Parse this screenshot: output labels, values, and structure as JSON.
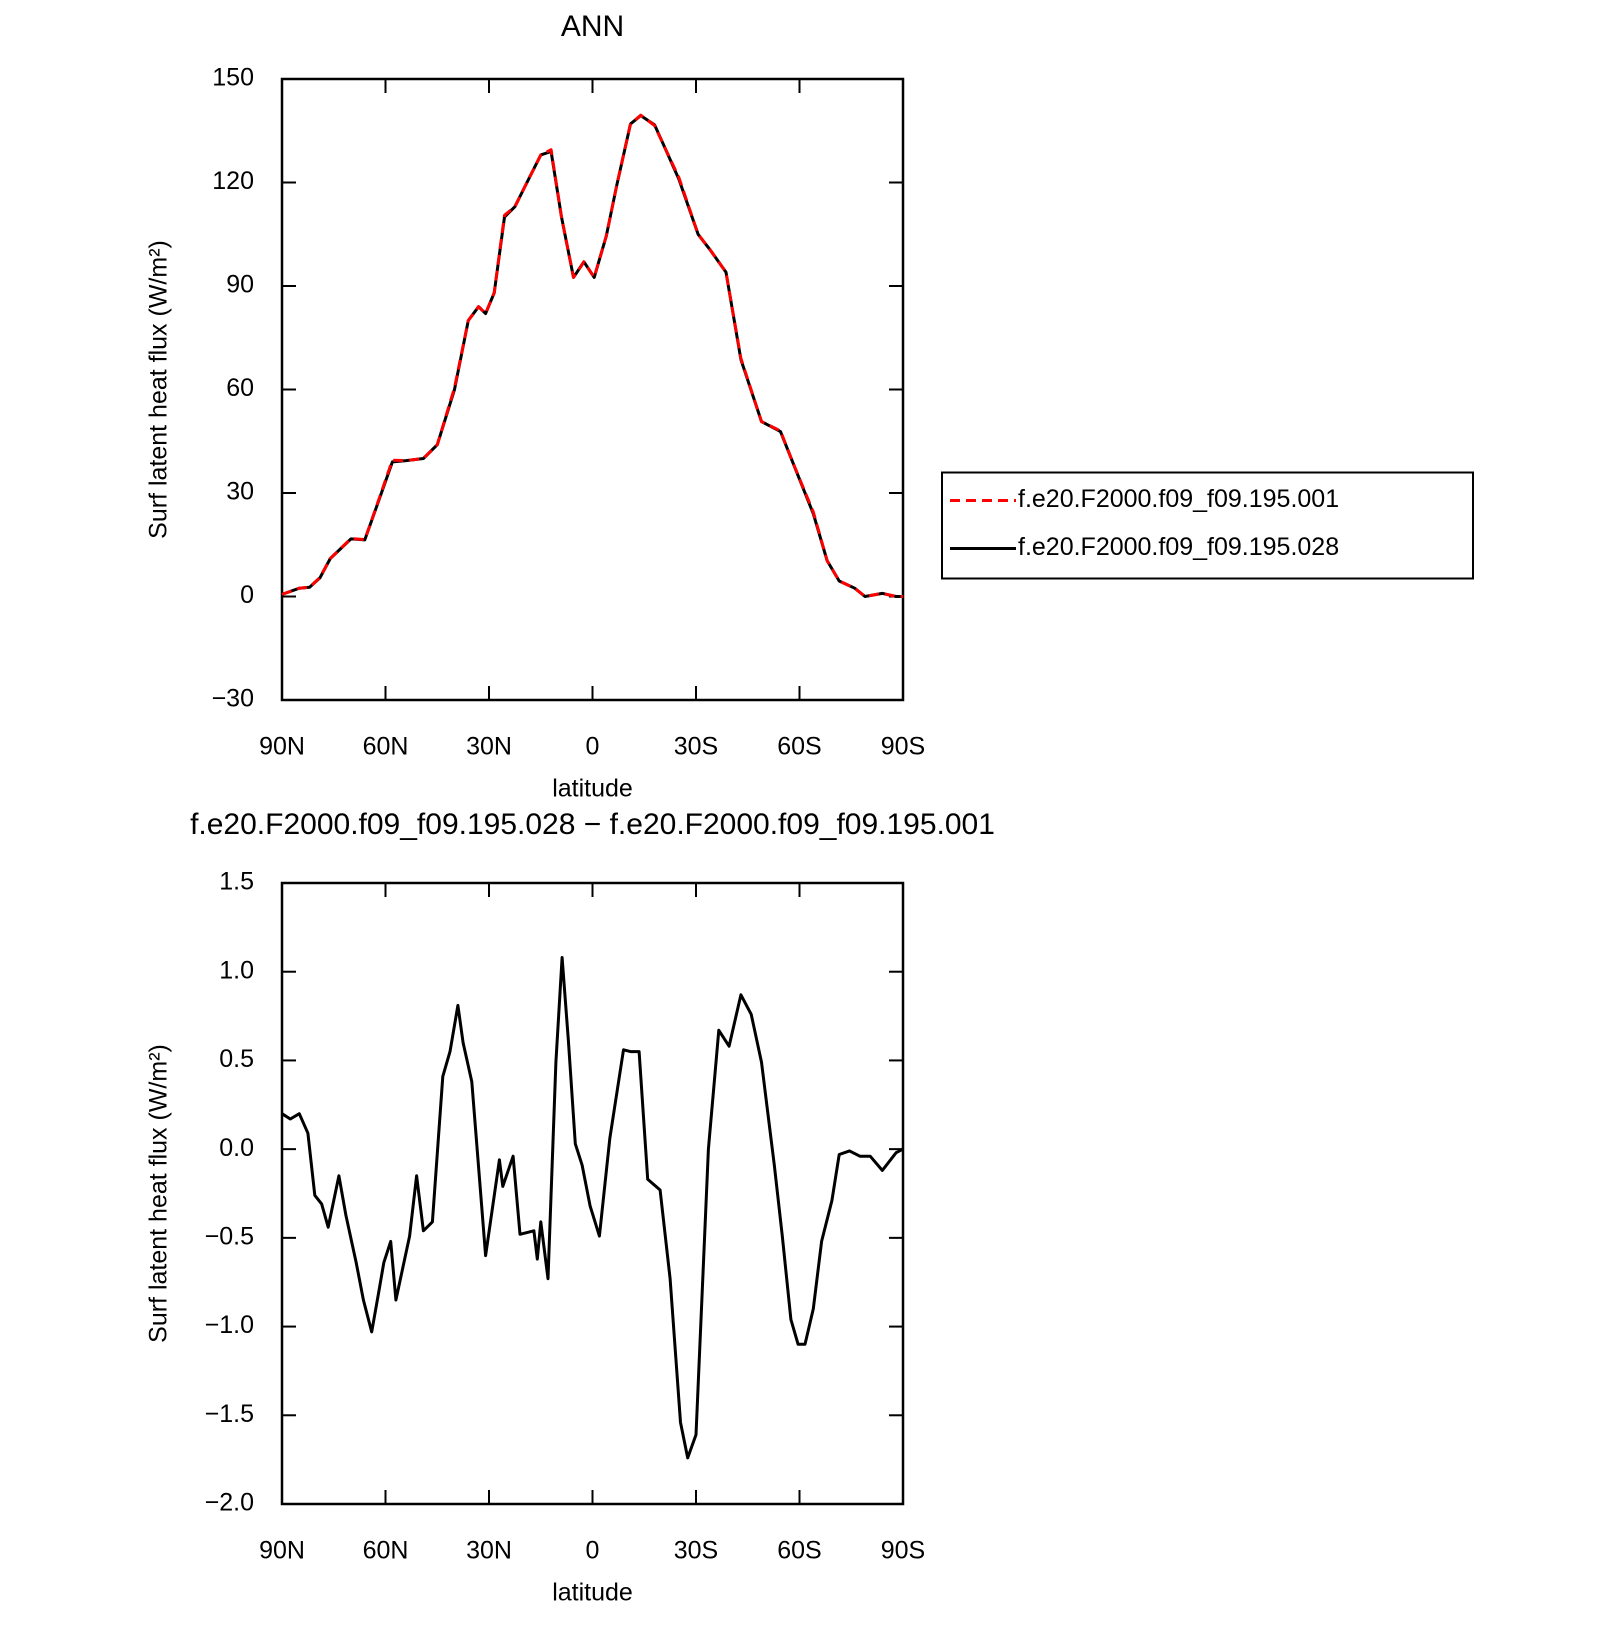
{
  "chart_data": [
    {
      "type": "line",
      "title": "ANN",
      "xlabel": "latitude",
      "ylabel": "Surf latent heat flux (W/m²)",
      "x": [
        90,
        85,
        82,
        79,
        76,
        70,
        66,
        63,
        58,
        54,
        49,
        45,
        40,
        36,
        33,
        31,
        28.5,
        25.5,
        22.5,
        19.5,
        15,
        12,
        9,
        5.5,
        2.5,
        -0.5,
        -4,
        -7,
        -11,
        -14,
        -18,
        -21,
        -25,
        -30.6,
        -34,
        -38.7,
        -43,
        -49,
        -54.5,
        -58,
        -64,
        -68,
        -71.5,
        -76,
        -79,
        -84,
        -88,
        -90
      ],
      "series": [
        {
          "name": "f.e20.F2000.f09_f09.195.001",
          "color": "#ff0000",
          "linestyle": "dashed",
          "values": [
            0.6,
            2.4,
            2.7,
            5.5,
            11,
            16.8,
            16.5,
            25,
            39.5,
            39.4,
            40,
            44,
            60.5,
            80,
            84,
            82,
            88,
            110.5,
            113,
            119,
            128,
            129.5,
            110,
            92.5,
            97,
            92.5,
            104.5,
            119,
            137,
            139.5,
            136.5,
            130,
            121.5,
            105,
            100.6,
            94,
            69,
            50.7,
            48,
            39,
            24.5,
            10.4,
            4.5,
            2.4,
            0,
            0.9,
            0,
            0
          ]
        },
        {
          "name": "f.e20.F2000.f09_f09.195.028",
          "color": "#000000",
          "linestyle": "solid",
          "values": [
            0.6,
            2.4,
            2.7,
            5.4,
            11,
            16.7,
            16.4,
            24.8,
            39,
            39.4,
            40,
            44,
            60,
            80,
            84,
            82,
            88,
            110,
            113,
            119,
            128,
            129,
            110,
            92.5,
            97,
            92.5,
            104.5,
            119,
            137,
            139.4,
            136.7,
            130,
            121,
            105,
            100.6,
            94,
            68.7,
            50.7,
            47.8,
            39,
            24,
            10.4,
            4.5,
            2.4,
            0,
            0.9,
            0,
            0
          ]
        }
      ],
      "xlim": [
        90,
        -90
      ],
      "xticks": [
        {
          "value": 90,
          "label": "90N"
        },
        {
          "value": 60,
          "label": "60N"
        },
        {
          "value": 30,
          "label": "30N"
        },
        0,
        {
          "value": -30,
          "label": "30S"
        },
        {
          "value": -60,
          "label": "60S"
        },
        {
          "value": -90,
          "label": "90S"
        }
      ],
      "ylim": [
        -30,
        150
      ],
      "yticks": [
        {
          "value": -30,
          "label": "−30"
        },
        0,
        30,
        60,
        90,
        120,
        150
      ],
      "legend": "right"
    },
    {
      "type": "line",
      "title": "f.e20.F2000.f09_f09.195.028 − f.e20.F2000.f09_f09.195.001",
      "xlabel": "latitude",
      "ylabel": "Surf latent heat flux (W/m²)",
      "x": [
        90,
        87.6,
        85,
        82.5,
        80.5,
        78.5,
        76.6,
        73.5,
        71.5,
        68.5,
        66.4,
        64,
        62,
        60.5,
        58.5,
        57,
        53,
        51,
        49,
        46.4,
        43.4,
        41.3,
        39,
        37.5,
        35,
        31,
        27,
        26,
        23,
        21,
        17,
        16,
        15,
        12.9,
        10.6,
        8.8,
        7,
        5,
        3,
        0.7,
        -2,
        -5,
        -9,
        -11,
        -13.5,
        -16,
        -19.6,
        -22.5,
        -25.5,
        -27.6,
        -30,
        -33.6,
        -36.6,
        -39.6,
        -43,
        -46,
        -49,
        -52.7,
        -55,
        -57.5,
        -59.6,
        -61.6,
        -64,
        -66.4,
        -69.4,
        -71.5,
        -74.5,
        -77.5,
        -80.5,
        -84,
        -88,
        -90
      ],
      "series": [
        {
          "color": "#000000",
          "linestyle": "solid",
          "values": [
            0.2,
            0.17,
            0.2,
            0.09,
            -0.26,
            -0.31,
            -0.44,
            -0.15,
            -0.37,
            -0.64,
            -0.85,
            -1.03,
            -0.81,
            -0.64,
            -0.52,
            -0.85,
            -0.49,
            -0.15,
            -0.46,
            -0.41,
            0.41,
            0.55,
            0.81,
            0.6,
            0.38,
            -0.6,
            -0.06,
            -0.21,
            -0.04,
            -0.48,
            -0.46,
            -0.62,
            -0.41,
            -0.73,
            0.49,
            1.08,
            0.61,
            0.03,
            -0.09,
            -0.32,
            -0.49,
            0.06,
            0.56,
            0.55,
            0.55,
            -0.17,
            -0.23,
            -0.73,
            -1.54,
            -1.74,
            -1.61,
            0,
            0.67,
            0.58,
            0.87,
            0.76,
            0.49,
            -0.09,
            -0.49,
            -0.96,
            -1.1,
            -1.1,
            -0.9,
            -0.52,
            -0.29,
            -0.03,
            -0.01,
            -0.04,
            -0.04,
            -0.12,
            -0.02,
            0
          ]
        }
      ],
      "xlim": [
        90,
        -90
      ],
      "xticks": [
        {
          "value": 90,
          "label": "90N"
        },
        {
          "value": 60,
          "label": "60N"
        },
        {
          "value": 30,
          "label": "30N"
        },
        0,
        {
          "value": -30,
          "label": "30S"
        },
        {
          "value": -60,
          "label": "60S"
        },
        {
          "value": -90,
          "label": "90S"
        }
      ],
      "ylim": [
        -2,
        1.5
      ],
      "yticks": [
        {
          "value": -2,
          "label": "−2.0"
        },
        {
          "value": -1.5,
          "label": "−1.5"
        },
        {
          "value": -1,
          "label": "−1.0"
        },
        {
          "value": -0.5,
          "label": "−0.5"
        },
        {
          "value": 0,
          "label": "0.0"
        },
        0.5,
        {
          "value": 1,
          "label": "1.0"
        },
        1.5
      ]
    }
  ]
}
